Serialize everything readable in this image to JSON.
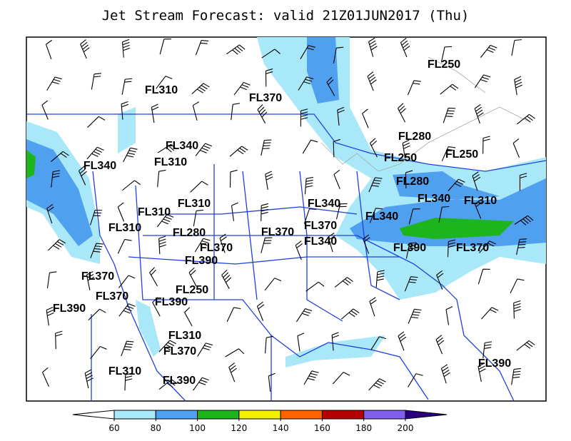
{
  "header": {
    "title": "Jet Stream Forecast:  valid 21Z01JUN2017 (Thu)"
  },
  "map_labels": [
    "FL250",
    "FL310",
    "FL370",
    "FL280",
    "FL250",
    "FL250",
    "FL340",
    "FL310",
    "FL340",
    "FL280",
    "FL340",
    "FL310",
    "FL310",
    "FL340",
    "FL310",
    "FL340",
    "FL310",
    "FL370",
    "FL370",
    "FL280",
    "FL340",
    "FL370",
    "FL390",
    "FL370",
    "FL390",
    "FL370",
    "FL250",
    "FL370",
    "FL390",
    "FL390",
    "FL310",
    "FL370",
    "FL390",
    "FL310",
    "FL390"
  ],
  "colorbar": {
    "ticks": [
      60,
      80,
      100,
      120,
      140,
      160,
      180,
      200
    ],
    "colors": [
      "#ffffff",
      "#a8e8f8",
      "#50a0f0",
      "#1eb41e",
      "#f0f000",
      "#ff6400",
      "#b40000",
      "#8060e8",
      "#2a0080"
    ]
  }
}
